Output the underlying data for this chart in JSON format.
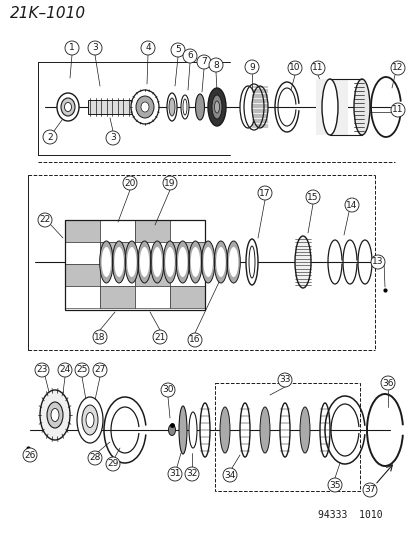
{
  "title": "21K–1010",
  "footer": "94333  1010",
  "bg_color": "#f5f5f0",
  "line_color": "#1a1a1a",
  "title_fontsize": 11,
  "footer_fontsize": 7,
  "label_fontsize": 7,
  "fig_width": 4.15,
  "fig_height": 5.33,
  "dpi": 100
}
